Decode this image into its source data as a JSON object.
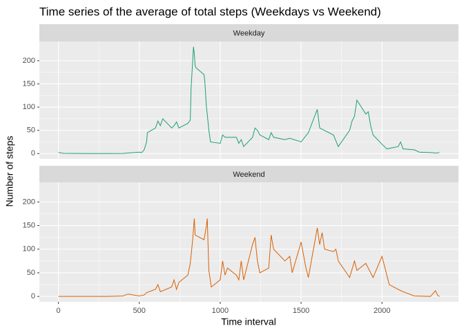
{
  "chart_data": {
    "type": "line",
    "title": "Time series of the average of total steps (Weekdays vs Weekend)",
    "x_label": "Time interval",
    "y_label": "Number of steps",
    "xlim": [
      -117.75,
      2472.75
    ],
    "xticks": [
      0,
      500,
      1000,
      1500,
      2000
    ],
    "ylim": [
      -11.5,
      241.5
    ],
    "yticks": [
      0,
      50,
      100,
      150,
      200
    ],
    "grid": true,
    "series": [
      {
        "name": "Weekday",
        "color": "#1B9E77",
        "x": [
          0,
          30,
          100,
          200,
          300,
          400,
          500,
          515,
          530,
          545,
          550,
          600,
          615,
          630,
          645,
          700,
          715,
          730,
          745,
          800,
          815,
          820,
          830,
          835,
          840,
          845,
          850,
          900,
          905,
          915,
          920,
          930,
          940,
          1000,
          1015,
          1030,
          1100,
          1115,
          1130,
          1145,
          1200,
          1215,
          1230,
          1245,
          1300,
          1315,
          1330,
          1400,
          1430,
          1500,
          1545,
          1600,
          1615,
          1700,
          1730,
          1800,
          1815,
          1830,
          1845,
          1900,
          1915,
          1930,
          1945,
          2000,
          2030,
          2100,
          2115,
          2130,
          2200,
          2230,
          2300,
          2330,
          2355
        ],
        "values": [
          2.3,
          0.5,
          0.3,
          0,
          0,
          0.3,
          3,
          2,
          8,
          25,
          45,
          55,
          70,
          60,
          75,
          55,
          60,
          68,
          55,
          65,
          72,
          140,
          200,
          230,
          215,
          190,
          185,
          170,
          155,
          100,
          85,
          50,
          25,
          22,
          40,
          35,
          35,
          22,
          30,
          15,
          35,
          55,
          50,
          40,
          30,
          45,
          35,
          30,
          33,
          25,
          45,
          95,
          55,
          40,
          15,
          50,
          70,
          80,
          115,
          85,
          90,
          60,
          40,
          20,
          10,
          15,
          25,
          10,
          8,
          3,
          2,
          1,
          2
        ]
      },
      {
        "name": "Weekend",
        "color": "#D95F02",
        "x": [
          0,
          100,
          200,
          300,
          400,
          430,
          500,
          530,
          545,
          600,
          615,
          630,
          700,
          715,
          730,
          745,
          800,
          815,
          830,
          840,
          845,
          900,
          915,
          920,
          930,
          945,
          1000,
          1015,
          1030,
          1045,
          1100,
          1115,
          1130,
          1145,
          1200,
          1215,
          1230,
          1245,
          1300,
          1315,
          1330,
          1400,
          1430,
          1445,
          1500,
          1530,
          1545,
          1600,
          1615,
          1630,
          1645,
          1700,
          1715,
          1730,
          1800,
          1830,
          1845,
          1900,
          1945,
          2000,
          2030,
          2045,
          2100,
          2130,
          2200,
          2300,
          2330,
          2345,
          2355
        ],
        "values": [
          0,
          0,
          0,
          0,
          1,
          5,
          1,
          3,
          8,
          15,
          25,
          10,
          20,
          35,
          15,
          30,
          45,
          70,
          120,
          165,
          130,
          120,
          150,
          165,
          55,
          20,
          35,
          75,
          45,
          60,
          45,
          35,
          75,
          35,
          110,
          125,
          75,
          50,
          60,
          130,
          100,
          75,
          85,
          50,
          115,
          60,
          40,
          145,
          110,
          135,
          100,
          95,
          100,
          75,
          40,
          75,
          55,
          70,
          40,
          85,
          45,
          25,
          15,
          10,
          1,
          0,
          12,
          2,
          0
        ]
      }
    ]
  }
}
